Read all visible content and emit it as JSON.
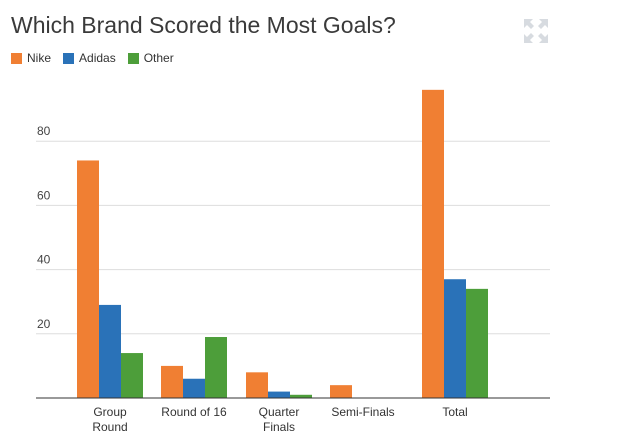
{
  "title": "Which Brand Scored the Most Goals?",
  "expand_icon": "expand-arrows-icon",
  "colors": {
    "Nike": "#f07f33",
    "Adidas": "#2a72b8",
    "Other": "#4d9e3a",
    "grid": "#dddddd",
    "axis": "#333333"
  },
  "chart_data": {
    "type": "bar",
    "title": "Which Brand Scored the Most Goals?",
    "categories": [
      [
        "Group",
        "Round"
      ],
      [
        "Round of 16"
      ],
      [
        "Quarter",
        "Finals"
      ],
      [
        "Semi-Finals"
      ],
      [
        "Total"
      ]
    ],
    "series": [
      {
        "name": "Nike",
        "values": [
          74,
          10,
          8,
          4,
          96
        ]
      },
      {
        "name": "Adidas",
        "values": [
          29,
          6,
          2,
          0,
          37
        ]
      },
      {
        "name": "Other",
        "values": [
          14,
          19,
          1,
          0,
          34
        ]
      }
    ],
    "yticks": [
      20,
      40,
      60,
      80
    ],
    "ylim": [
      0,
      100
    ],
    "grid": true,
    "legend": "top-left"
  }
}
